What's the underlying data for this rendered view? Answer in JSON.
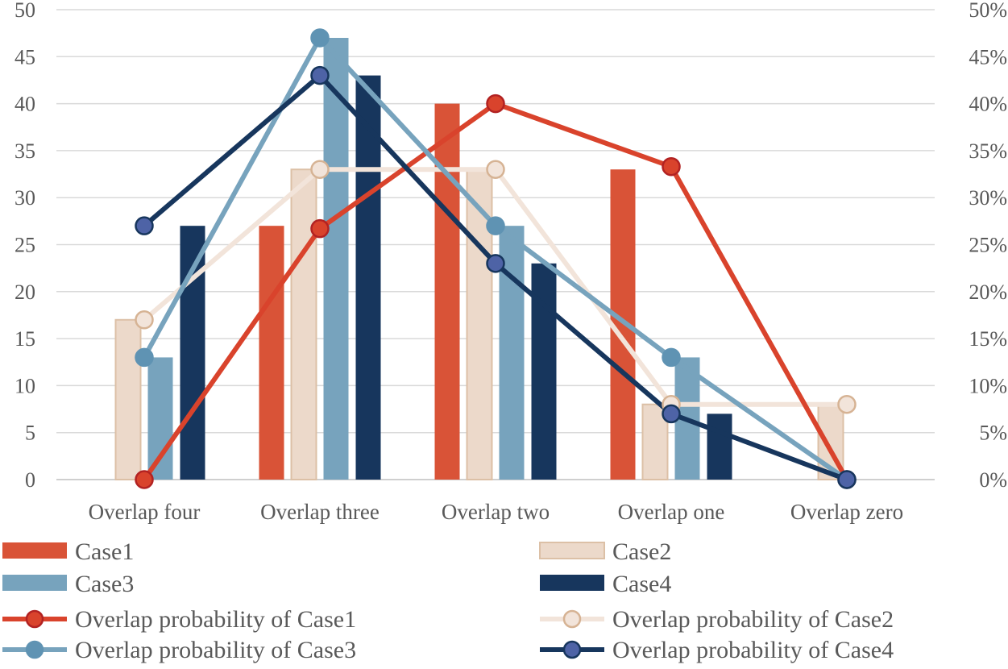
{
  "chart_data": {
    "type": "bar",
    "title": "",
    "xlabel": "",
    "ylabel": "",
    "categories": [
      "Overlap four",
      "Overlap three",
      "Overlap two",
      "Overlap one",
      "Overlap zero"
    ],
    "ylim": [
      0,
      50
    ],
    "y_ticks": [
      "0",
      "5",
      "10",
      "15",
      "20",
      "25",
      "30",
      "35",
      "40",
      "45",
      "50"
    ],
    "y2lim": [
      0,
      50
    ],
    "y2_ticks": [
      "0%",
      "5%",
      "10%",
      "15%",
      "20%",
      "25%",
      "30%",
      "35%",
      "40%",
      "45%",
      "50%"
    ],
    "grid": true,
    "legend_position": "bottom",
    "bar_series": [
      {
        "key": "case1",
        "name": "Case1",
        "values": [
          0,
          27,
          40,
          33,
          0
        ],
        "color": "#d95337"
      },
      {
        "key": "case2",
        "name": "Case2",
        "values": [
          17,
          33,
          33,
          8,
          8
        ],
        "color": "#ecd9ca",
        "stroke": "#dcc0a6"
      },
      {
        "key": "case3",
        "name": "Case3",
        "values": [
          13,
          47,
          27,
          13,
          0
        ],
        "color": "#77a3bd"
      },
      {
        "key": "case4",
        "name": "Case4",
        "values": [
          27,
          43,
          23,
          7,
          0
        ],
        "color": "#17365d"
      }
    ],
    "line_series": [
      {
        "key": "prob1",
        "name": "Overlap probability of Case1",
        "axis": "right",
        "values_percent": [
          0,
          26.7,
          40,
          33.3,
          0
        ],
        "color": "#d9432c",
        "marker_fill": "#d9432c",
        "marker_stroke": "#b22222"
      },
      {
        "key": "prob2",
        "name": "Overlap probability of Case2",
        "axis": "right",
        "values_percent": [
          17,
          33,
          33,
          8,
          8
        ],
        "color": "#f2e4da",
        "marker_fill": "#f2e4da",
        "marker_stroke": "#d6b394"
      },
      {
        "key": "prob3",
        "name": "Overlap probability of Case3",
        "axis": "right",
        "values_percent": [
          13,
          47,
          27,
          13,
          0
        ],
        "color": "#77a3bd",
        "marker_fill": "#5f93b3",
        "marker_stroke": "#5f93b3"
      },
      {
        "key": "prob4",
        "name": "Overlap probability of Case4",
        "axis": "right",
        "values_percent": [
          27,
          43,
          23,
          7,
          0
        ],
        "color": "#17365d",
        "marker_fill": "#4e63a6",
        "marker_stroke": "#17365d"
      }
    ],
    "legend": {
      "case1": "Case1",
      "case2": "Case2",
      "case3": "Case3",
      "case4": "Case4",
      "prob1": "Overlap probability of Case1",
      "prob2": "Overlap probability of Case2",
      "prob3": "Overlap probability of Case3",
      "prob4": "Overlap probability of Case4"
    }
  }
}
